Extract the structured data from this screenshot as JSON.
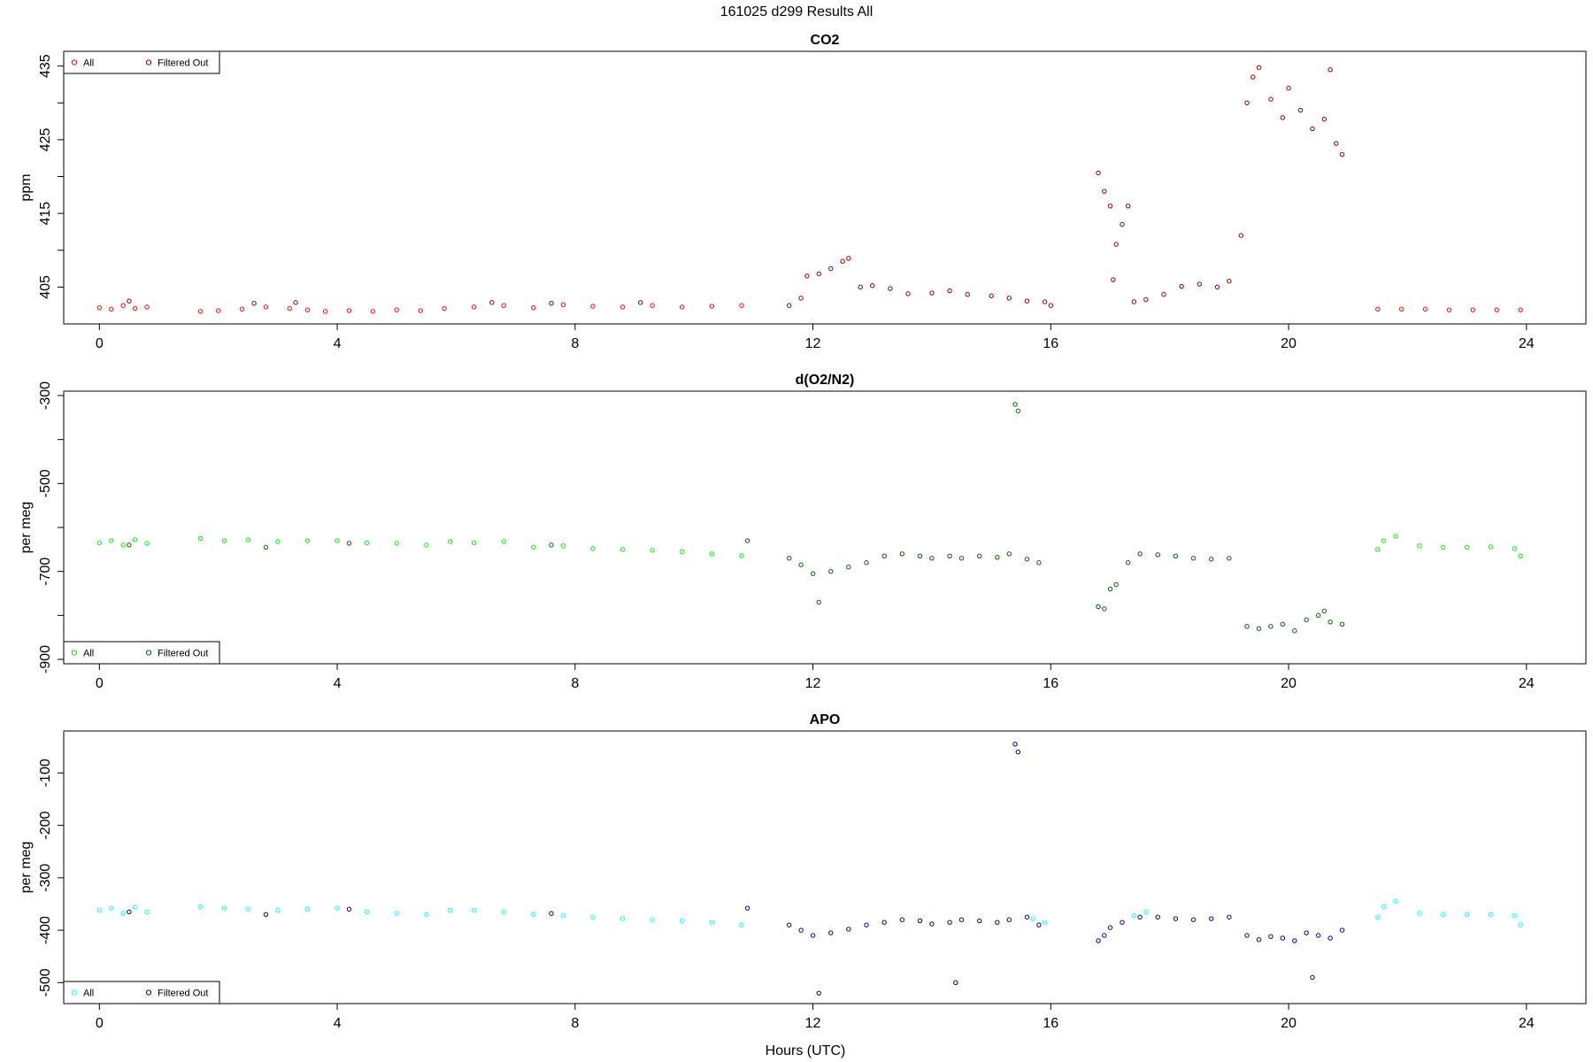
{
  "figure": {
    "title": "161025   d299   Results All",
    "xlabel": "Hours (UTC)"
  },
  "chart_data": [
    {
      "type": "scatter",
      "title": "CO2",
      "xlabel": "Hours (UTC)",
      "ylabel": "ppm",
      "xlim": [
        -0.6,
        25.0
      ],
      "ylim": [
        400,
        437
      ],
      "xticks": [
        0,
        4,
        8,
        12,
        16,
        20,
        24
      ],
      "yticks": [
        405,
        415,
        425,
        435
      ],
      "yminor": [
        410,
        420,
        430
      ],
      "grid": false,
      "legend": {
        "position": "top-left",
        "entries": [
          "All",
          "Filtered Out"
        ]
      },
      "series": [
        {
          "name": "All",
          "color": "#ff0000",
          "points": [
            [
              0.0,
              402.2
            ],
            [
              0.2,
              402.0
            ],
            [
              0.4,
              402.5
            ],
            [
              0.6,
              402.1
            ],
            [
              0.8,
              402.3
            ],
            [
              1.7,
              401.7
            ],
            [
              2.0,
              401.8
            ],
            [
              2.4,
              402.0
            ],
            [
              2.8,
              402.3
            ],
            [
              3.2,
              402.1
            ],
            [
              3.5,
              401.9
            ],
            [
              3.8,
              401.7
            ],
            [
              4.2,
              401.8
            ],
            [
              4.6,
              401.7
            ],
            [
              5.0,
              401.9
            ],
            [
              5.4,
              401.8
            ],
            [
              5.8,
              402.1
            ],
            [
              6.3,
              402.3
            ],
            [
              6.8,
              402.5
            ],
            [
              7.3,
              402.2
            ],
            [
              7.8,
              402.6
            ],
            [
              8.3,
              402.4
            ],
            [
              8.8,
              402.3
            ],
            [
              9.3,
              402.5
            ],
            [
              9.8,
              402.3
            ],
            [
              10.3,
              402.4
            ],
            [
              10.8,
              402.5
            ],
            [
              21.5,
              402.0
            ],
            [
              21.9,
              402.0
            ],
            [
              22.3,
              402.0
            ],
            [
              22.7,
              401.9
            ],
            [
              23.1,
              401.9
            ],
            [
              23.5,
              401.9
            ],
            [
              23.9,
              401.9
            ]
          ]
        },
        {
          "name": "Filtered Out",
          "color": "#8b0000",
          "points": [
            [
              0.5,
              403.1
            ],
            [
              2.6,
              402.8
            ],
            [
              3.3,
              402.9
            ],
            [
              6.6,
              402.9
            ],
            [
              7.6,
              402.8
            ],
            [
              9.1,
              402.9
            ],
            [
              11.6,
              402.5
            ],
            [
              11.8,
              403.5
            ],
            [
              11.9,
              406.5
            ],
            [
              12.1,
              406.8
            ],
            [
              12.3,
              407.5
            ],
            [
              12.5,
              408.5
            ],
            [
              12.6,
              408.9
            ],
            [
              12.8,
              405.0
            ],
            [
              13.0,
              405.2
            ],
            [
              13.3,
              404.8
            ],
            [
              13.6,
              404.1
            ],
            [
              14.0,
              404.2
            ],
            [
              14.3,
              404.5
            ],
            [
              14.6,
              404.0
            ],
            [
              15.0,
              403.8
            ],
            [
              15.3,
              403.5
            ],
            [
              15.6,
              403.1
            ],
            [
              15.9,
              403.0
            ],
            [
              16.0,
              402.5
            ],
            [
              16.8,
              420.5
            ],
            [
              16.9,
              418.0
            ],
            [
              17.0,
              416.0
            ],
            [
              17.05,
              406.0
            ],
            [
              17.1,
              410.8
            ],
            [
              17.2,
              413.5
            ],
            [
              17.3,
              416.0
            ],
            [
              17.4,
              403.0
            ],
            [
              17.6,
              403.3
            ],
            [
              17.9,
              404.0
            ],
            [
              18.2,
              405.1
            ],
            [
              18.5,
              405.4
            ],
            [
              18.8,
              405.0
            ],
            [
              19.0,
              405.8
            ],
            [
              19.2,
              412.0
            ],
            [
              19.3,
              430.0
            ],
            [
              19.4,
              433.5
            ],
            [
              19.5,
              434.8
            ],
            [
              19.7,
              430.5
            ],
            [
              19.9,
              428.0
            ],
            [
              20.0,
              432.0
            ],
            [
              20.2,
              429.0
            ],
            [
              20.4,
              426.5
            ],
            [
              20.6,
              427.8
            ],
            [
              20.7,
              434.5
            ],
            [
              20.8,
              424.5
            ],
            [
              20.9,
              423.0
            ]
          ]
        }
      ]
    },
    {
      "type": "scatter",
      "title": "d(O2/N2)",
      "xlabel": "Hours (UTC)",
      "ylabel": "per meg",
      "xlim": [
        -0.6,
        25.0
      ],
      "ylim": [
        -910,
        -290
      ],
      "xticks": [
        0,
        4,
        8,
        12,
        16,
        20,
        24
      ],
      "yticks": [
        -300,
        -500,
        -700,
        -900
      ],
      "yminor": [
        -400,
        -600,
        -800
      ],
      "grid": false,
      "legend": {
        "position": "bottom-left",
        "entries": [
          "All",
          "Filtered Out"
        ]
      },
      "series": [
        {
          "name": "All",
          "color": "#00ee00",
          "points": [
            [
              0.0,
              -635
            ],
            [
              0.2,
              -630
            ],
            [
              0.4,
              -640
            ],
            [
              0.6,
              -628
            ],
            [
              0.8,
              -636
            ],
            [
              1.7,
              -625
            ],
            [
              2.1,
              -630
            ],
            [
              2.5,
              -628
            ],
            [
              3.0,
              -632
            ],
            [
              3.5,
              -630
            ],
            [
              4.0,
              -630
            ],
            [
              4.5,
              -635
            ],
            [
              5.0,
              -636
            ],
            [
              5.5,
              -640
            ],
            [
              5.9,
              -632
            ],
            [
              6.3,
              -635
            ],
            [
              6.8,
              -632
            ],
            [
              7.3,
              -645
            ],
            [
              7.8,
              -642
            ],
            [
              8.3,
              -648
            ],
            [
              8.8,
              -650
            ],
            [
              9.3,
              -652
            ],
            [
              9.8,
              -655
            ],
            [
              10.3,
              -660
            ],
            [
              10.8,
              -664
            ],
            [
              21.5,
              -650
            ],
            [
              21.6,
              -630
            ],
            [
              21.8,
              -620
            ],
            [
              22.2,
              -642
            ],
            [
              22.6,
              -645
            ],
            [
              23.0,
              -645
            ],
            [
              23.4,
              -644
            ],
            [
              23.8,
              -648
            ],
            [
              23.9,
              -665
            ]
          ]
        },
        {
          "name": "Filtered Out",
          "color": "#006400",
          "points": [
            [
              0.5,
              -640
            ],
            [
              2.8,
              -645
            ],
            [
              4.2,
              -636
            ],
            [
              7.6,
              -640
            ],
            [
              10.9,
              -630
            ],
            [
              11.6,
              -670
            ],
            [
              11.8,
              -685
            ],
            [
              12.0,
              -705
            ],
            [
              12.1,
              -770
            ],
            [
              12.3,
              -700
            ],
            [
              12.6,
              -690
            ],
            [
              12.9,
              -680
            ],
            [
              13.2,
              -665
            ],
            [
              13.5,
              -660
            ],
            [
              13.8,
              -665
            ],
            [
              14.0,
              -670
            ],
            [
              14.3,
              -665
            ],
            [
              14.5,
              -670
            ],
            [
              14.8,
              -665
            ],
            [
              15.1,
              -668
            ],
            [
              15.3,
              -660
            ],
            [
              15.4,
              -320
            ],
            [
              15.45,
              -335
            ],
            [
              15.6,
              -672
            ],
            [
              15.8,
              -680
            ],
            [
              16.8,
              -780
            ],
            [
              16.9,
              -785
            ],
            [
              17.0,
              -740
            ],
            [
              17.1,
              -730
            ],
            [
              17.3,
              -680
            ],
            [
              17.5,
              -660
            ],
            [
              17.8,
              -662
            ],
            [
              18.1,
              -665
            ],
            [
              18.4,
              -670
            ],
            [
              18.7,
              -672
            ],
            [
              19.0,
              -670
            ],
            [
              19.3,
              -825
            ],
            [
              19.5,
              -830
            ],
            [
              19.7,
              -825
            ],
            [
              19.9,
              -820
            ],
            [
              20.1,
              -835
            ],
            [
              20.3,
              -810
            ],
            [
              20.5,
              -800
            ],
            [
              20.6,
              -790
            ],
            [
              20.7,
              -815
            ],
            [
              20.9,
              -820
            ]
          ]
        }
      ]
    },
    {
      "type": "scatter",
      "title": "APO",
      "xlabel": "Hours (UTC)",
      "ylabel": "per meg",
      "xlim": [
        -0.6,
        25.0
      ],
      "ylim": [
        -540,
        -20
      ],
      "xticks": [
        0,
        4,
        8,
        12,
        16,
        20,
        24
      ],
      "yticks": [
        -100,
        -200,
        -300,
        -400,
        -500
      ],
      "yminor": [],
      "grid": false,
      "legend": {
        "position": "bottom-left",
        "entries": [
          "All",
          "Filtered Out"
        ]
      },
      "series": [
        {
          "name": "All",
          "color": "#00ffff",
          "points": [
            [
              0.0,
              -362
            ],
            [
              0.2,
              -358
            ],
            [
              0.4,
              -368
            ],
            [
              0.6,
              -356
            ],
            [
              0.8,
              -365
            ],
            [
              1.7,
              -355
            ],
            [
              2.1,
              -358
            ],
            [
              2.5,
              -360
            ],
            [
              3.0,
              -362
            ],
            [
              3.5,
              -360
            ],
            [
              4.0,
              -358
            ],
            [
              4.5,
              -365
            ],
            [
              5.0,
              -368
            ],
            [
              5.5,
              -370
            ],
            [
              5.9,
              -362
            ],
            [
              6.3,
              -362
            ],
            [
              6.8,
              -365
            ],
            [
              7.3,
              -370
            ],
            [
              7.8,
              -372
            ],
            [
              8.3,
              -375
            ],
            [
              8.8,
              -378
            ],
            [
              9.3,
              -380
            ],
            [
              9.8,
              -382
            ],
            [
              10.3,
              -385
            ],
            [
              10.8,
              -390
            ],
            [
              15.7,
              -378
            ],
            [
              15.9,
              -385
            ],
            [
              17.4,
              -372
            ],
            [
              17.6,
              -365
            ],
            [
              21.5,
              -375
            ],
            [
              21.6,
              -355
            ],
            [
              21.8,
              -345
            ],
            [
              22.2,
              -368
            ],
            [
              22.6,
              -370
            ],
            [
              23.0,
              -370
            ],
            [
              23.4,
              -370
            ],
            [
              23.8,
              -372
            ],
            [
              23.9,
              -390
            ]
          ]
        },
        {
          "name": "Filtered Out",
          "color": "#00008b",
          "points": [
            [
              0.5,
              -365
            ],
            [
              2.8,
              -370
            ],
            [
              4.2,
              -360
            ],
            [
              7.6,
              -368
            ],
            [
              10.9,
              -358
            ],
            [
              11.6,
              -390
            ],
            [
              11.8,
              -400
            ],
            [
              12.0,
              -410
            ],
            [
              12.1,
              -520
            ],
            [
              12.3,
              -405
            ],
            [
              12.6,
              -398
            ],
            [
              12.9,
              -390
            ],
            [
              13.2,
              -385
            ],
            [
              13.5,
              -380
            ],
            [
              13.8,
              -382
            ],
            [
              14.0,
              -388
            ],
            [
              14.3,
              -385
            ],
            [
              14.4,
              -500
            ],
            [
              14.5,
              -380
            ],
            [
              14.8,
              -382
            ],
            [
              15.1,
              -385
            ],
            [
              15.3,
              -380
            ],
            [
              15.4,
              -45
            ],
            [
              15.45,
              -60
            ],
            [
              15.6,
              -375
            ],
            [
              15.8,
              -390
            ],
            [
              16.8,
              -420
            ],
            [
              16.9,
              -410
            ],
            [
              17.0,
              -395
            ],
            [
              17.2,
              -385
            ],
            [
              17.5,
              -375
            ],
            [
              17.8,
              -375
            ],
            [
              18.1,
              -378
            ],
            [
              18.4,
              -380
            ],
            [
              18.7,
              -378
            ],
            [
              19.0,
              -375
            ],
            [
              19.3,
              -410
            ],
            [
              19.5,
              -418
            ],
            [
              19.7,
              -412
            ],
            [
              19.9,
              -415
            ],
            [
              20.1,
              -420
            ],
            [
              20.3,
              -405
            ],
            [
              20.4,
              -490
            ],
            [
              20.5,
              -410
            ],
            [
              20.7,
              -415
            ],
            [
              20.9,
              -400
            ]
          ]
        }
      ]
    }
  ]
}
